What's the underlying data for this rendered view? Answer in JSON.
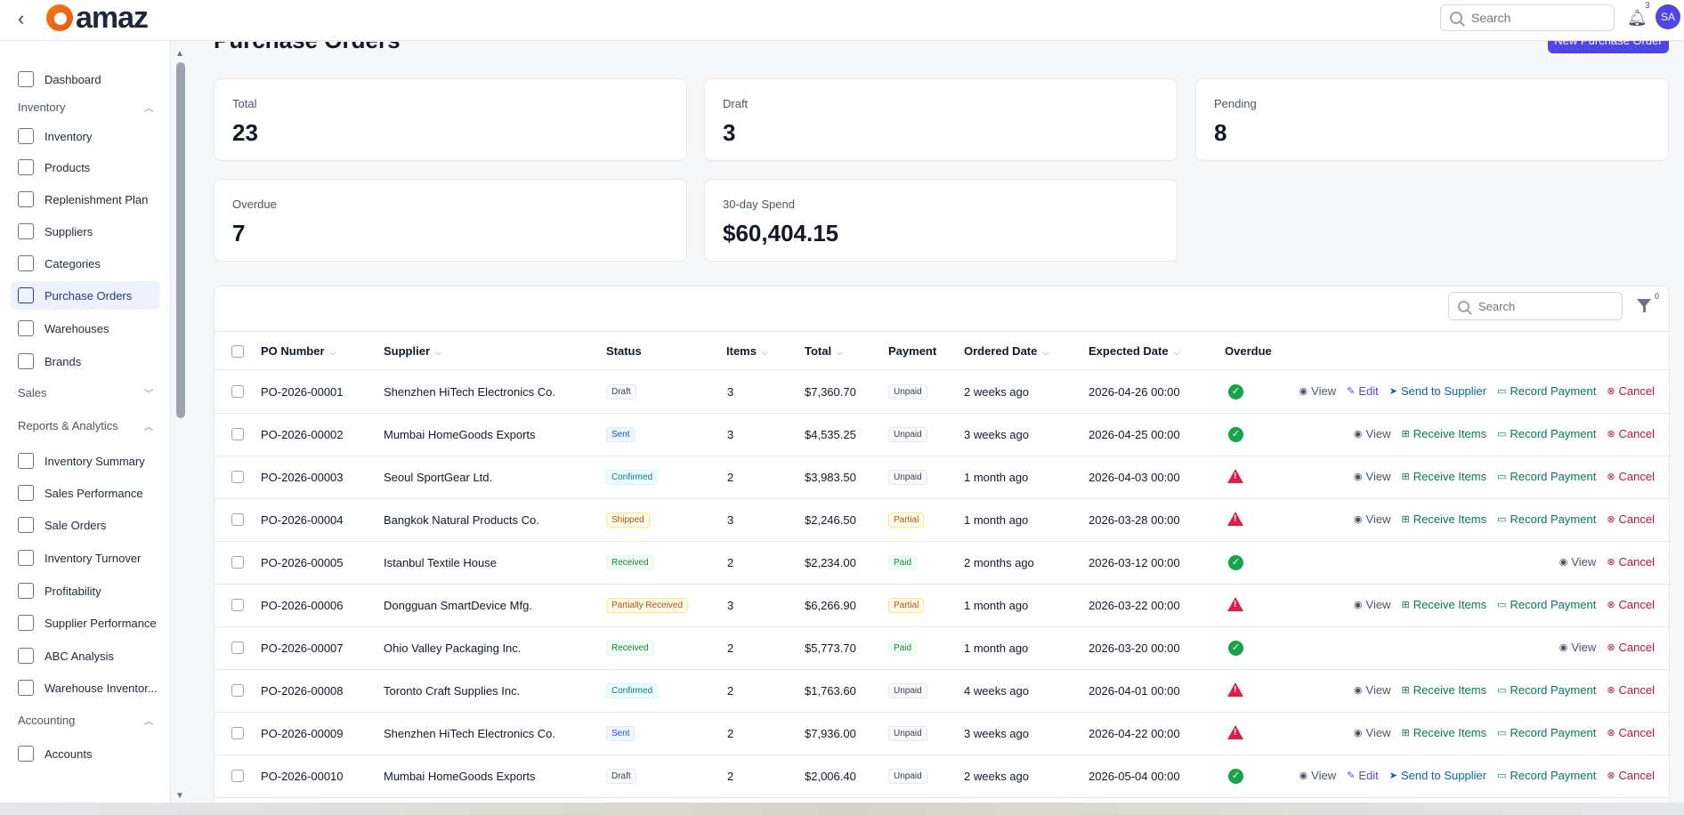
{
  "topbar": {
    "logo_text": "amaz",
    "search_placeholder": "Search",
    "notification_count": "3",
    "avatar_initials": "SA"
  },
  "sidebar": {
    "items": [
      {
        "label": "Dashboard",
        "icon": "home-icon"
      },
      {
        "section": "Inventory",
        "expanded": true
      },
      {
        "label": "Inventory",
        "icon": "box-icon"
      },
      {
        "label": "Products",
        "icon": "archive-icon"
      },
      {
        "label": "Replenishment Plan",
        "icon": "trend-icon"
      },
      {
        "label": "Suppliers",
        "icon": "truck-icon"
      },
      {
        "label": "Categories",
        "icon": "shapes-icon"
      },
      {
        "label": "Purchase Orders",
        "icon": "wallet-icon",
        "active": true
      },
      {
        "label": "Warehouses",
        "icon": "warehouse-icon"
      },
      {
        "label": "Brands",
        "icon": "sparkles-icon"
      },
      {
        "section": "Sales",
        "expanded": false
      },
      {
        "section": "Reports & Analytics",
        "expanded": true
      },
      {
        "label": "Inventory Summary",
        "icon": "archive-icon"
      },
      {
        "label": "Sales Performance",
        "icon": "chart-icon"
      },
      {
        "label": "Sale Orders",
        "icon": "cart-icon"
      },
      {
        "label": "Inventory Turnover",
        "icon": "swap-icon"
      },
      {
        "label": "Profitability",
        "icon": "money-icon"
      },
      {
        "label": "Supplier Performance",
        "icon": "truck-icon"
      },
      {
        "label": "ABC Analysis",
        "icon": "bars-icon"
      },
      {
        "label": "Warehouse Inventor...",
        "icon": "warehouse-icon"
      },
      {
        "section": "Accounting",
        "expanded": true
      },
      {
        "label": "Accounts",
        "icon": "bank-icon"
      }
    ]
  },
  "page": {
    "title": "Purchase Orders",
    "new_button": "New Purchase Order"
  },
  "stats": [
    {
      "label": "Total",
      "value": "23"
    },
    {
      "label": "Draft",
      "value": "3"
    },
    {
      "label": "Pending",
      "value": "8"
    },
    {
      "label": "Overdue",
      "value": "7"
    },
    {
      "label": "30-day Spend",
      "value": "$60,404.15"
    }
  ],
  "table": {
    "search_placeholder": "Search",
    "filter_count": "0",
    "columns": [
      "PO Number",
      "Supplier",
      "Status",
      "Items",
      "Total",
      "Payment",
      "Ordered Date",
      "Expected Date",
      "Overdue"
    ],
    "rows": [
      {
        "po": "PO-2026-00001",
        "supplier": "Shenzhen HiTech Electronics Co.",
        "status": "Draft",
        "status_class": "b-draft",
        "items": "3",
        "total": "$7,360.70",
        "payment": "Unpaid",
        "payment_class": "b-unpaid",
        "ordered": "2 weeks ago",
        "expected": "2026-04-26 00:00",
        "overdue": false,
        "actions": [
          "View",
          "Edit",
          "Send to Supplier",
          "Record Payment",
          "Cancel"
        ]
      },
      {
        "po": "PO-2026-00002",
        "supplier": "Mumbai HomeGoods Exports",
        "status": "Sent",
        "status_class": "b-sent",
        "items": "3",
        "total": "$4,535.25",
        "payment": "Unpaid",
        "payment_class": "b-unpaid",
        "ordered": "3 weeks ago",
        "expected": "2026-04-25 00:00",
        "overdue": false,
        "actions": [
          "View",
          "Receive Items",
          "Record Payment",
          "Cancel"
        ]
      },
      {
        "po": "PO-2026-00003",
        "supplier": "Seoul SportGear Ltd.",
        "status": "Confirmed",
        "status_class": "b-confirmed",
        "items": "2",
        "total": "$3,983.50",
        "payment": "Unpaid",
        "payment_class": "b-unpaid",
        "ordered": "1 month ago",
        "expected": "2026-04-03 00:00",
        "overdue": true,
        "actions": [
          "View",
          "Receive Items",
          "Record Payment",
          "Cancel"
        ]
      },
      {
        "po": "PO-2026-00004",
        "supplier": "Bangkok Natural Products Co.",
        "status": "Shipped",
        "status_class": "b-shipped",
        "items": "3",
        "total": "$2,246.50",
        "payment": "Partial",
        "payment_class": "b-partial",
        "ordered": "1 month ago",
        "expected": "2026-03-28 00:00",
        "overdue": true,
        "actions": [
          "View",
          "Receive Items",
          "Record Payment",
          "Cancel"
        ]
      },
      {
        "po": "PO-2026-00005",
        "supplier": "Istanbul Textile House",
        "status": "Received",
        "status_class": "b-received",
        "items": "2",
        "total": "$2,234.00",
        "payment": "Paid",
        "payment_class": "b-paid",
        "ordered": "2 months ago",
        "expected": "2026-03-12 00:00",
        "overdue": false,
        "actions": [
          "View",
          "Cancel"
        ]
      },
      {
        "po": "PO-2026-00006",
        "supplier": "Dongguan SmartDevice Mfg.",
        "status": "Partially Received",
        "status_class": "b-partialrec",
        "items": "3",
        "total": "$6,266.90",
        "payment": "Partial",
        "payment_class": "b-partial",
        "ordered": "1 month ago",
        "expected": "2026-03-22 00:00",
        "overdue": true,
        "actions": [
          "View",
          "Receive Items",
          "Record Payment",
          "Cancel"
        ]
      },
      {
        "po": "PO-2026-00007",
        "supplier": "Ohio Valley Packaging Inc.",
        "status": "Received",
        "status_class": "b-received",
        "items": "2",
        "total": "$5,773.70",
        "payment": "Paid",
        "payment_class": "b-paid",
        "ordered": "1 month ago",
        "expected": "2026-03-20 00:00",
        "overdue": false,
        "actions": [
          "View",
          "Cancel"
        ]
      },
      {
        "po": "PO-2026-00008",
        "supplier": "Toronto Craft Supplies Inc.",
        "status": "Confirmed",
        "status_class": "b-confirmed",
        "items": "2",
        "total": "$1,763.60",
        "payment": "Unpaid",
        "payment_class": "b-unpaid",
        "ordered": "4 weeks ago",
        "expected": "2026-04-01 00:00",
        "overdue": true,
        "actions": [
          "View",
          "Receive Items",
          "Record Payment",
          "Cancel"
        ]
      },
      {
        "po": "PO-2026-00009",
        "supplier": "Shenzhen HiTech Electronics Co.",
        "status": "Sent",
        "status_class": "b-sent",
        "items": "2",
        "total": "$7,936.00",
        "payment": "Unpaid",
        "payment_class": "b-unpaid",
        "ordered": "3 weeks ago",
        "expected": "2026-04-22 00:00",
        "overdue": true,
        "actions": [
          "View",
          "Receive Items",
          "Record Payment",
          "Cancel"
        ]
      },
      {
        "po": "PO-2026-00010",
        "supplier": "Mumbai HomeGoods Exports",
        "status": "Draft",
        "status_class": "b-draft",
        "items": "2",
        "total": "$2,006.40",
        "payment": "Unpaid",
        "payment_class": "b-unpaid",
        "ordered": "2 weeks ago",
        "expected": "2026-05-04 00:00",
        "overdue": false,
        "actions": [
          "View",
          "Edit",
          "Send to Supplier",
          "Record Payment",
          "Cancel"
        ]
      }
    ]
  },
  "colors": {
    "accent": "#4f46e5",
    "ok": "#16a34a",
    "overdue": "#e11d48"
  }
}
